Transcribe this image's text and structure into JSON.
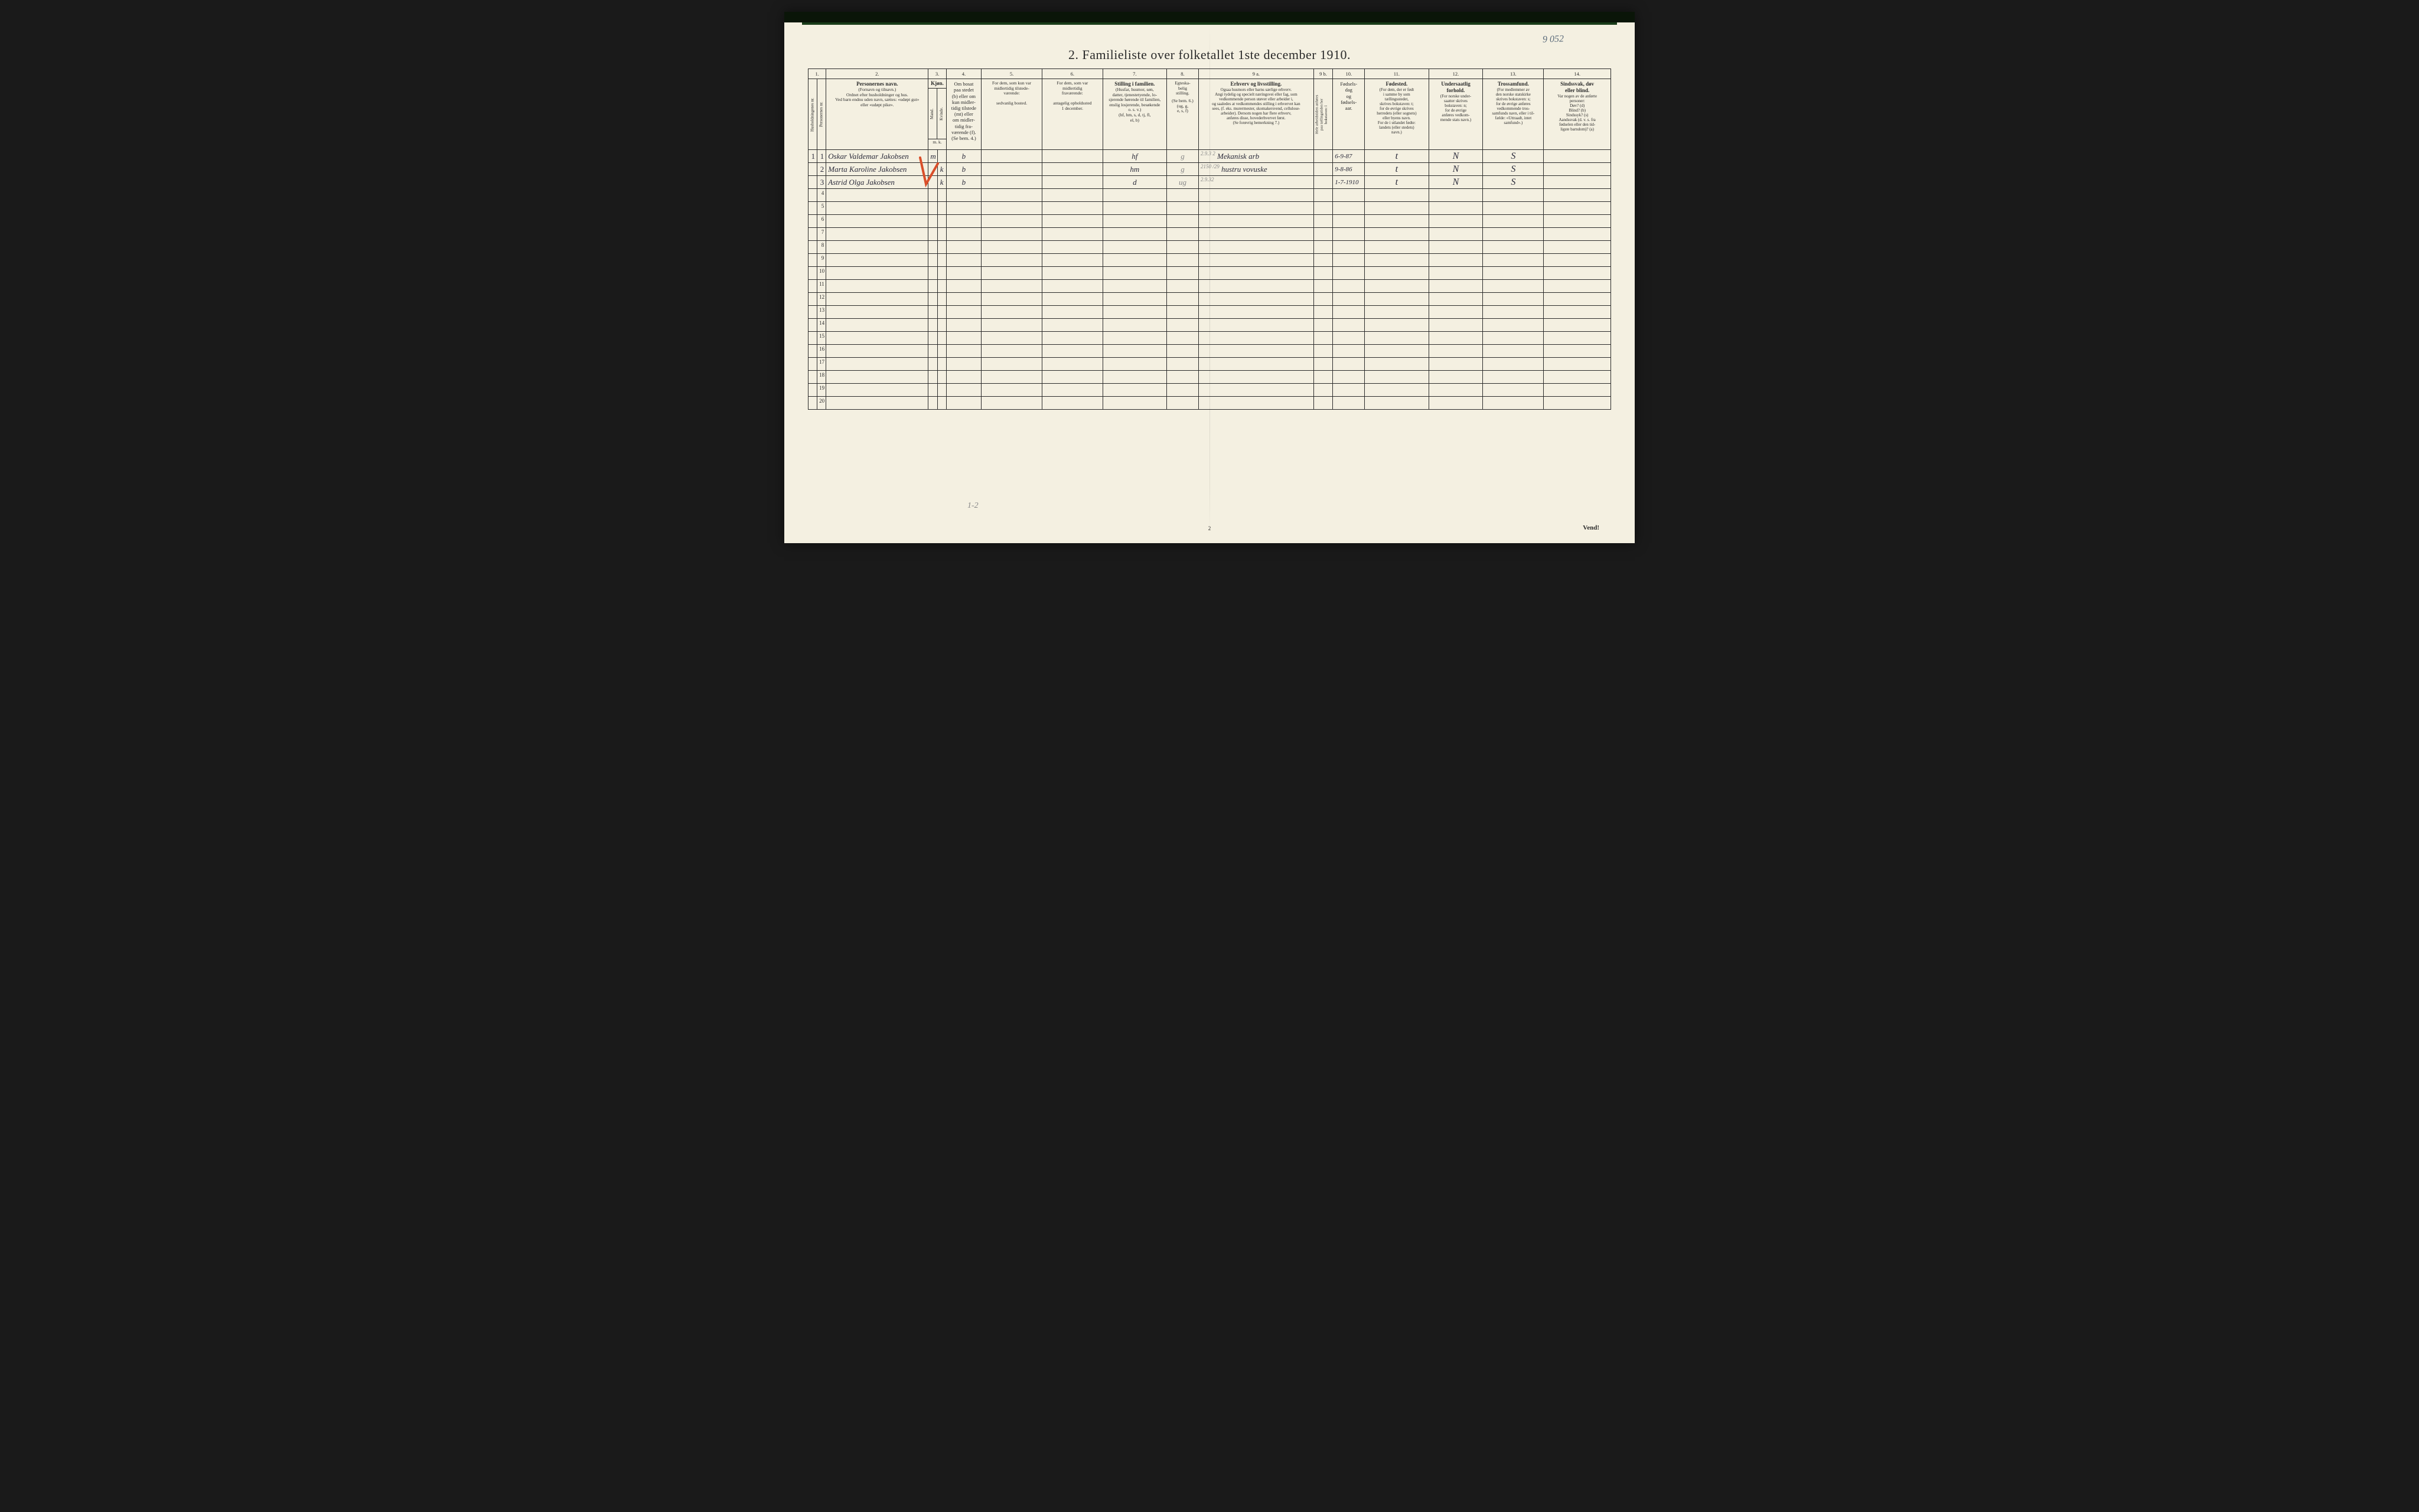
{
  "annotation_topright": "9 052",
  "title": "2.  Familieliste over folketallet 1ste december 1910.",
  "pencil_bottom": "1-2",
  "page_num": "2",
  "vend": "Vend!",
  "col_numbers": [
    "1.",
    "2.",
    "3.",
    "4.",
    "5.",
    "6.",
    "7.",
    "8.",
    "9 a.",
    "9 b.",
    "10.",
    "11.",
    "12.",
    "13.",
    "14."
  ],
  "headers": {
    "c1a": "Husholdningenes nr.",
    "c1b": "Personernes nr.",
    "c2_main": "Personernes navn.",
    "c2_sub": "(Fornavn og tilnavn.)\nOrdnet efter husholdninger og hus.\nVed barn endnu uden navn, sættes: «udøpt gut»\neller «udøpt pike».",
    "c3_main": "Kjøn.",
    "c3a": "Mand.",
    "c3b": "Kvinde.",
    "c3_sub": "m.  k.",
    "c4_main": "Om bosat\npaa stedet\n(b) eller om\nkun midler-\ntidig tilstede\n(mt) eller\nom midler-\ntidig fra-\nværende (f).\n(Se bem. 4.)",
    "c5_main": "For dem, som kun var\nmidlertidig tilstede-\nværende:",
    "c5_sub": "sedvanlig bosted.",
    "c6_main": "For dem, som var\nmidlertidig\nfraværende:",
    "c6_sub": "antagelig opholdssted\n1 december.",
    "c7_main": "Stilling i familien.",
    "c7_sub": "(Husfar, husmor, søn,\ndatter, tjenestetyende, lo-\nsjerende hørende til familien,\nenslig losjerende, besøkende\no. s. v.)\n(hf, hm, s, d, tj, fl,\nel, b)",
    "c8_main": "Egteska-\nbelig\nstilling.",
    "c8_sub": "(Se bem. 6.)\n(ug, g,\ne, s, f)",
    "c9a_main": "Erhverv og livsstilling.",
    "c9a_sub": "Ogsaa husmors eller barns særlige erhverv.\nAngi tydelig og specielt næringsvei eller fag, som\nvedkommende person utøver eller arbeider i,\nog saaledes at vedkommendes stilling i erhvervet kan\nsees, (f. eks. murermester, skomakersvend, cellulose-\narbeider). Dersom nogen har flere erhverv,\nanføres disse, hovederhvervet først.\n(Se forøvrig bemerkning 7.)",
    "c9b": "Hele arbeidstiden anføres\npaa tællingstiden her\nbokstaven: l",
    "c10_main": "Fødsels-\ndag\nog\nfødsels-\naar.",
    "c11_main": "Fødested.",
    "c11_sub": "(For dem, der er født\ni samme by som\ntællingsstedet,\nskrives bokstaven: t;\nfor de øvrige skrives\nherredets (eller sognets)\neller byens navn.\nFor de i utlandet fødte:\nlandets (eller stedets)\nnavn.)",
    "c12_main": "Undersaatlig\nforhold.",
    "c12_sub": "(For norske under-\nsaatter skrives\nbokstaven: n;\nfor de øvrige\nanføres vedkom-\nmende stats navn.)",
    "c13_main": "Trossamfund.",
    "c13_sub": "(For medlemmer av\nden norske statskirke\nskrives bokstaven: s;\nfor de øvrige anføres\nvedkommende tros-\nsamfunds navn, eller i til-\nfælde: «Uttraadt, intet\nsamfund».)",
    "c14_main": "Sindssvak, døv\neller blind.",
    "c14_sub": "Var nogen av de anførte\npersoner:\nDøv?        (d)\nBlind?      (b)\nSindssyk?  (s)\nAandssvak (d. v. s. fra\nfødselen eller den tid-\nligste barndom)? (a)"
  },
  "rows": [
    {
      "hnr": "1",
      "pnr": "1",
      "name": "Oskar Valdemar Jakobsen",
      "sex": "m",
      "res": "b",
      "fam": "hf",
      "mar": "g",
      "occ": "Mekanisk arb",
      "occ_note": "2.9.3 2",
      "dob": "6-9-87",
      "bp": "t",
      "nat": "N",
      "rel": "S"
    },
    {
      "hnr": "",
      "pnr": "2",
      "name": "Marta Karoline Jakobsen",
      "sex": "k",
      "res": "b",
      "fam": "hm",
      "mar": "g",
      "occ": "hustru vovuske",
      "occ_note": "2150 /29",
      "dob": "9-8-86",
      "bp": "t",
      "nat": "N",
      "rel": "S"
    },
    {
      "hnr": "",
      "pnr": "3",
      "name": "Astrid Olga Jakobsen",
      "sex": "k",
      "res": "b",
      "fam": "d",
      "mar": "ug",
      "occ": "",
      "occ_note": "2.9.32",
      "dob": "1-7-1910",
      "bp": "t",
      "nat": "N",
      "rel": "S"
    }
  ],
  "empty_row_count": 17,
  "colors": {
    "paper": "#f4f0e1",
    "ink": "#2a2a2a",
    "handwriting": "#2a2a3a",
    "pencil": "#888888",
    "red": "#d94f2a"
  }
}
